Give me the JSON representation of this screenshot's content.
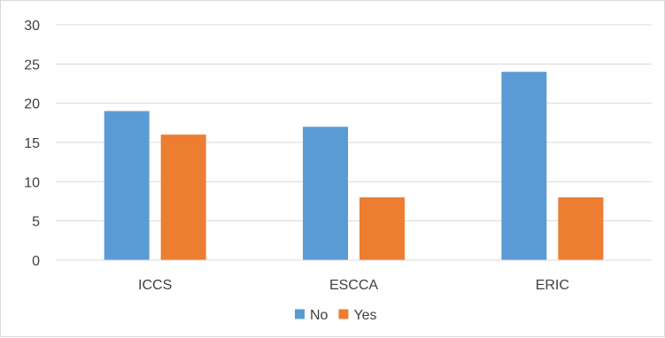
{
  "chart_data": {
    "type": "bar",
    "categories": [
      "ICCS",
      "ESCCA",
      "ERIC"
    ],
    "series": [
      {
        "name": "No",
        "values": [
          19,
          17,
          24
        ],
        "color": "#5b9bd5"
      },
      {
        "name": "Yes",
        "values": [
          16,
          8,
          8
        ],
        "color": "#ed7d31"
      }
    ],
    "ylim": [
      0,
      30
    ],
    "yticks": [
      0,
      5,
      10,
      15,
      20,
      25,
      30
    ],
    "grid": true,
    "gridlines": "horizontal",
    "legend_position": "bottom",
    "title": "",
    "xlabel": "",
    "ylabel": ""
  }
}
